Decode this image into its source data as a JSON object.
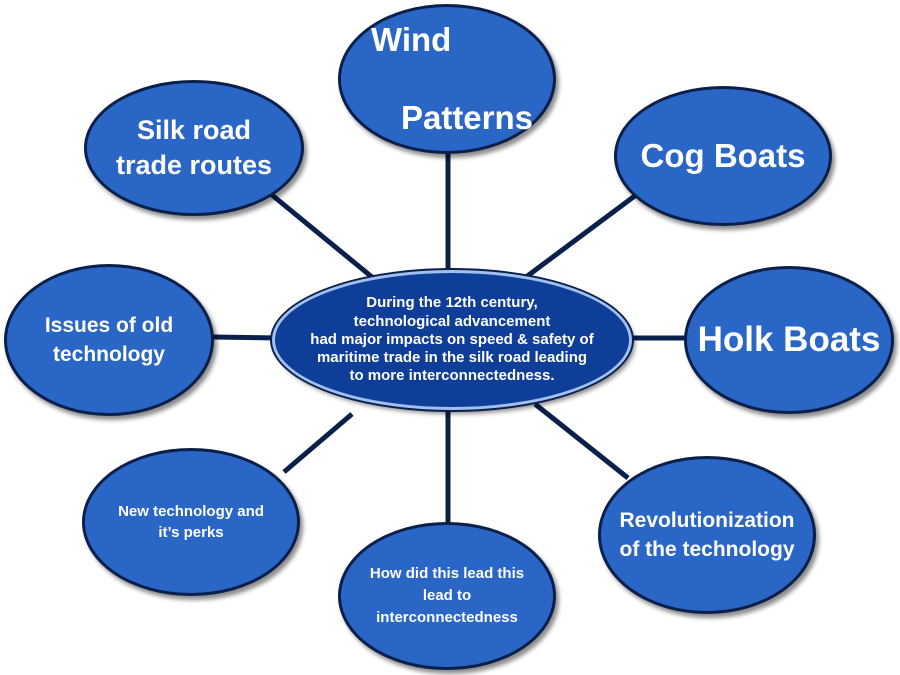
{
  "center": {
    "text": "During the 12th century,\ntechnological advancement\nhad major impacts on speed & safety of\nmaritime trade in the silk road leading\nto more interconnectedness."
  },
  "nodes": {
    "wind_line1": "Wind",
    "wind_line2": "Patterns",
    "silk_road": "Silk road\ntrade routes",
    "cog_boats": "Cog Boats",
    "holk_boats": "Holk Boats",
    "issues_old_tech": "Issues of old\ntechnology",
    "new_tech": "New technology and\nit’s perks",
    "how_lead": "How did this lead this\nlead to\ninterconnectedness",
    "revolutionization": "Revolutionization\nof the technology"
  },
  "colors": {
    "node_fill": "#2a66c6",
    "center_fill": "#0e3e97",
    "outline": "#0a1f4a",
    "connector": "#0a1f4a",
    "text": "#ffffff"
  }
}
